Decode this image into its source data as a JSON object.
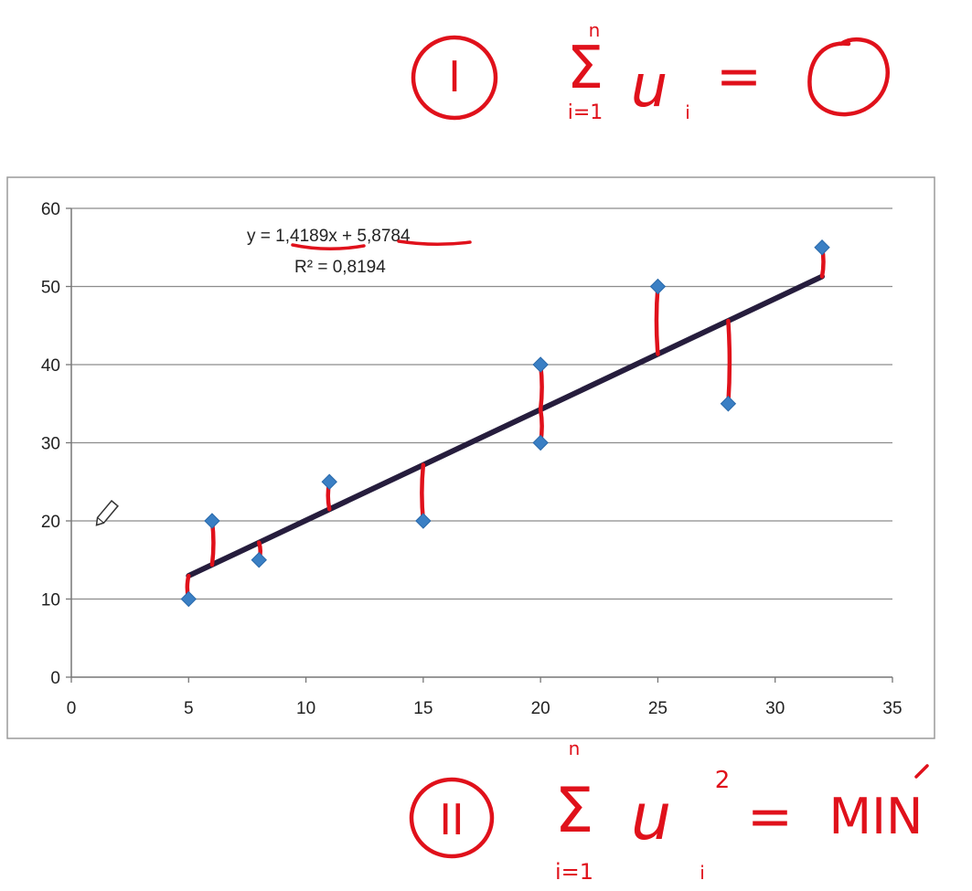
{
  "chart_data": {
    "type": "scatter",
    "x_ticks": [
      "0",
      "5",
      "10",
      "15",
      "20",
      "25",
      "30",
      "35"
    ],
    "y_ticks": [
      "0",
      "10",
      "20",
      "30",
      "40",
      "50",
      "60"
    ],
    "xlim": [
      0,
      35
    ],
    "ylim": [
      0,
      60
    ],
    "grid": "horizontal",
    "points": [
      {
        "x": 5,
        "y": 10
      },
      {
        "x": 6,
        "y": 20
      },
      {
        "x": 8,
        "y": 15
      },
      {
        "x": 11,
        "y": 25
      },
      {
        "x": 15,
        "y": 20
      },
      {
        "x": 20,
        "y": 40
      },
      {
        "x": 20,
        "y": 30
      },
      {
        "x": 25,
        "y": 50
      },
      {
        "x": 28,
        "y": 35
      },
      {
        "x": 32,
        "y": 55
      }
    ],
    "trendline": {
      "slope": 1.4189,
      "intercept": 5.8784,
      "x_range": [
        5,
        32
      ]
    },
    "equation_label": "y = 1,4189x + 5,8784",
    "r2_label": "R² = 0,8194",
    "colors": {
      "points": "#3a7fc4",
      "trendline": "#261d3d",
      "residuals": "#e0111b",
      "grid": "#8c8c8c"
    }
  },
  "annotations": {
    "top_marker": "I",
    "top_sum_upper": "n",
    "top_sum_lower": "i=1",
    "top_term": "u",
    "top_subscript": "i",
    "top_equals": "=",
    "bottom_marker": "II",
    "bottom_sum_upper": "n",
    "bottom_sum_lower": "i=1",
    "bottom_term": "u",
    "bottom_subscript": "i",
    "bottom_superscript": "2",
    "bottom_equals": "=",
    "bottom_result": "MIN"
  }
}
